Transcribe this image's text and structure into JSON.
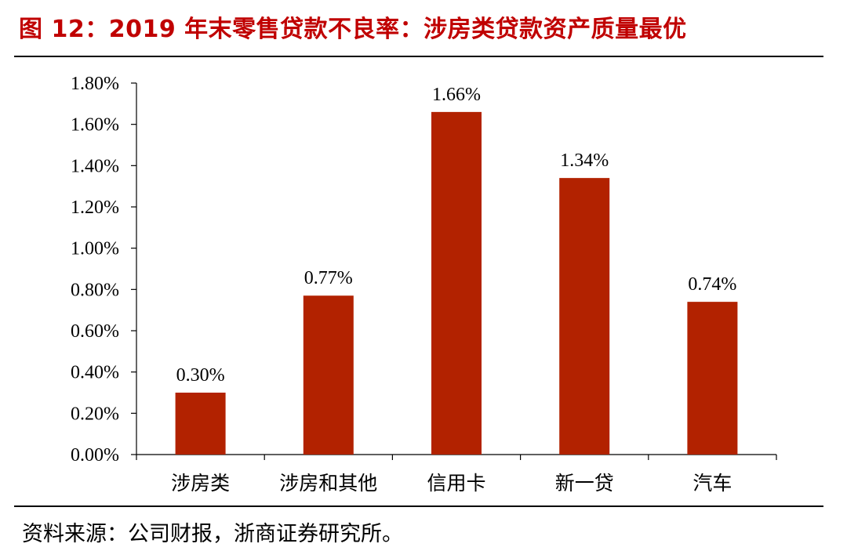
{
  "header": {
    "title": "图 12：2019 年末零售贷款不良率：涉房类贷款资产质量最优",
    "title_color": "#C00000"
  },
  "footer": {
    "source": "资料来源：公司财报，浙商证券研究所。"
  },
  "chart_data": {
    "type": "bar",
    "title": "2019 年末零售贷款不良率：涉房类贷款资产质量最优",
    "xlabel": "",
    "ylabel": "",
    "categories": [
      "涉房类",
      "涉房和其他",
      "信用卡",
      "新一贷",
      "汽车"
    ],
    "values": [
      0.3,
      0.77,
      1.66,
      1.34,
      0.74
    ],
    "value_labels": [
      "0.30%",
      "0.77%",
      "1.66%",
      "1.34%",
      "0.74%"
    ],
    "ylim": [
      0,
      1.8
    ],
    "yticks": [
      0,
      0.2,
      0.4,
      0.6,
      0.8,
      1.0,
      1.2,
      1.4,
      1.6,
      1.8
    ],
    "ytick_labels": [
      "0.00%",
      "0.20%",
      "0.40%",
      "0.60%",
      "0.80%",
      "1.00%",
      "1.20%",
      "1.40%",
      "1.60%",
      "1.80%"
    ],
    "bar_color": "#B22200",
    "grid": false,
    "legend": "none"
  }
}
